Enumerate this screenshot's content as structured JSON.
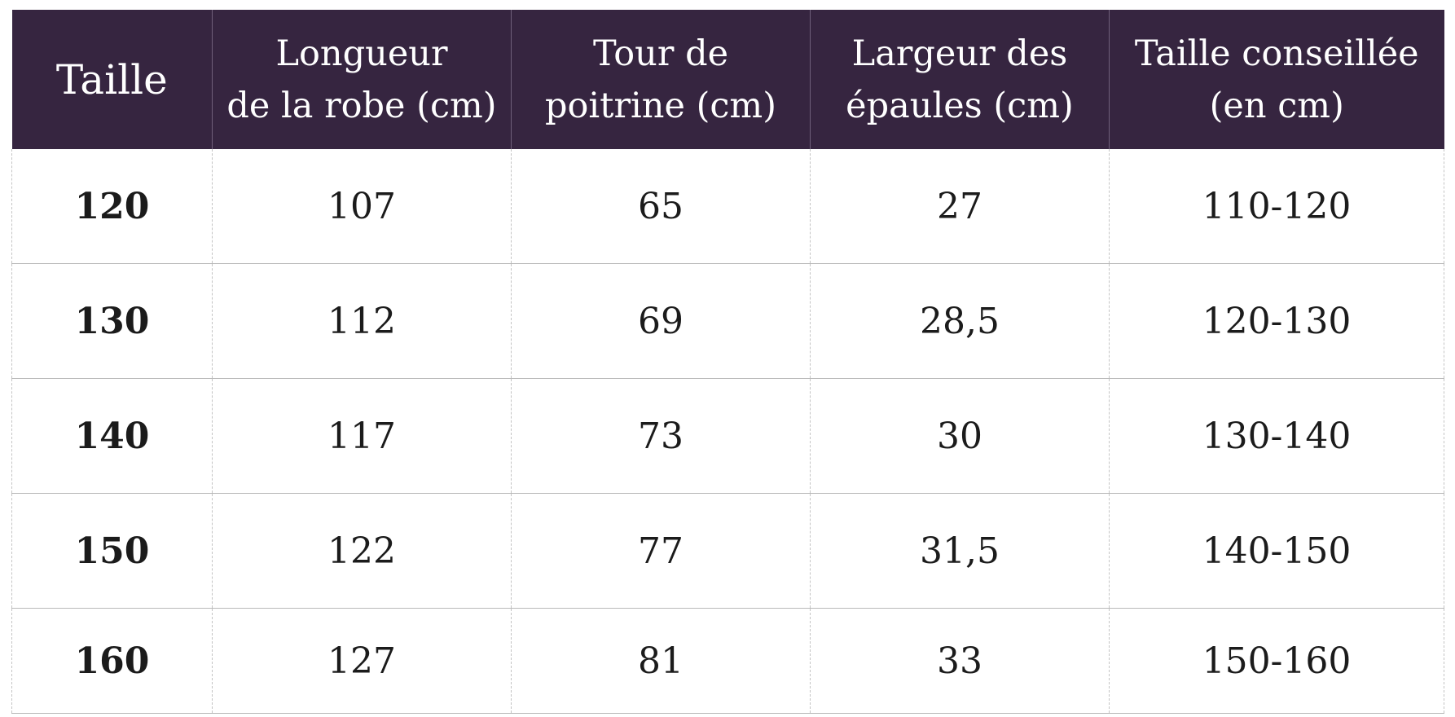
{
  "size_chart": {
    "headers": [
      "Taille",
      "Longueur\nde la robe (cm)",
      "Tour de\npoitrine (cm)",
      "Largeur des\népaules (cm)",
      "Taille conseillée\n(en cm)"
    ],
    "rows": [
      [
        "120",
        "107",
        "65",
        "27",
        "110-120"
      ],
      [
        "130",
        "112",
        "69",
        "28,5",
        "120-130"
      ],
      [
        "140",
        "117",
        "73",
        "30",
        "130-140"
      ],
      [
        "150",
        "122",
        "77",
        "31,5",
        "140-150"
      ],
      [
        "160",
        "127",
        "81",
        "33",
        "150-160"
      ]
    ],
    "colors": {
      "header_background": "#362540",
      "header_text": "#ffffff",
      "cell_text": "#1b1b1b",
      "grid_line": "#b9b9b9"
    }
  }
}
